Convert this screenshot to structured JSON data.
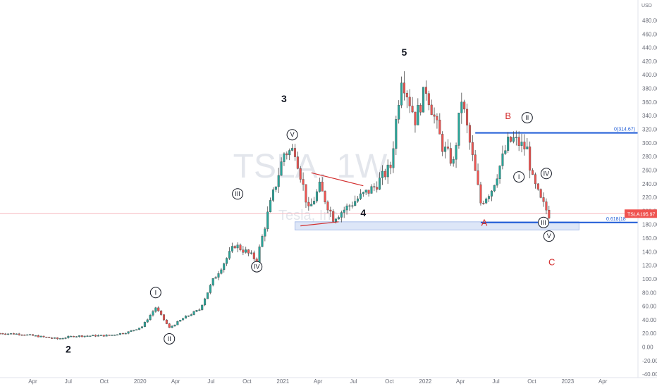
{
  "chart_data": {
    "type": "candlestick",
    "timeframe": "1W",
    "watermark": "TSLA, 1W",
    "watermark_sub": "Tesla, Inc.",
    "ticker": "TSLA",
    "last_price": "195.97",
    "currency": "USD",
    "ylim": [
      -45,
      510
    ],
    "y_ticks": [
      "480.00",
      "460.00",
      "440.00",
      "420.00",
      "400.00",
      "380.00",
      "360.00",
      "340.00",
      "320.00",
      "300.00",
      "280.00",
      "260.00",
      "240.00",
      "220.00",
      "200.00",
      "180.00",
      "160.00",
      "140.00",
      "120.00",
      "100.00",
      "80.00",
      "60.00",
      "40.00",
      "20.00",
      "0.00",
      "-20.00",
      "-40.00"
    ],
    "x_labels": [
      "Apr",
      "Jul",
      "Oct",
      "2020",
      "Apr",
      "Jul",
      "Oct",
      "2021",
      "Apr",
      "Jul",
      "Oct",
      "2022",
      "Apr",
      "Jul",
      "Oct",
      "2023",
      "Apr"
    ],
    "x_range": [
      "2019-01-07",
      "2023-06-30"
    ],
    "x_label_dates": [
      "2019-04-01",
      "2019-07-01",
      "2019-10-01",
      "2020-01-01",
      "2020-04-01",
      "2020-07-01",
      "2020-10-01",
      "2021-01-01",
      "2021-04-01",
      "2021-07-01",
      "2021-10-01",
      "2022-01-01",
      "2022-04-01",
      "2022-07-01",
      "2022-10-01",
      "2023-01-01",
      "2023-04-01"
    ],
    "price_anchors": [
      [
        "2019-01-07",
        20
      ],
      [
        "2019-03-01",
        19
      ],
      [
        "2019-06-03",
        12
      ],
      [
        "2019-07-15",
        16
      ],
      [
        "2019-10-14",
        17
      ],
      [
        "2019-12-02",
        22
      ],
      [
        "2020-01-06",
        30
      ],
      [
        "2020-02-10",
        58
      ],
      [
        "2020-03-16",
        28
      ],
      [
        "2020-04-20",
        42
      ],
      [
        "2020-06-01",
        55
      ],
      [
        "2020-07-06",
        98
      ],
      [
        "2020-08-31",
        150
      ],
      [
        "2020-09-28",
        140
      ],
      [
        "2020-10-26",
        128
      ],
      [
        "2020-11-23",
        195
      ],
      [
        "2021-01-04",
        285
      ],
      [
        "2021-02-01",
        290
      ],
      [
        "2021-03-08",
        200
      ],
      [
        "2021-04-05",
        235
      ],
      [
        "2021-05-10",
        190
      ],
      [
        "2021-06-14",
        205
      ],
      [
        "2021-07-12",
        218
      ],
      [
        "2021-08-23",
        235
      ],
      [
        "2021-10-04",
        265
      ],
      [
        "2021-11-01",
        400
      ],
      [
        "2021-12-06",
        335
      ],
      [
        "2022-01-03",
        380
      ],
      [
        "2022-02-14",
        295
      ],
      [
        "2022-03-14",
        270
      ],
      [
        "2022-04-04",
        365
      ],
      [
        "2022-05-23",
        212
      ],
      [
        "2022-06-20",
        232
      ],
      [
        "2022-08-01",
        300
      ],
      [
        "2022-08-15",
        305
      ],
      [
        "2022-09-19",
        290
      ],
      [
        "2022-10-03",
        245
      ],
      [
        "2022-10-24",
        215
      ],
      [
        "2022-11-14",
        195
      ]
    ],
    "horizontal_lines": [
      {
        "label": "0(314.67)",
        "y": 314.67
      },
      {
        "label": "0.618(18",
        "y": 183
      }
    ],
    "zone": {
      "from": 172,
      "to": 184
    },
    "wave_labels_major": [
      {
        "text": "2",
        "date": "2019-07-01",
        "y": -8
      },
      {
        "text": "3",
        "date": "2021-01-04",
        "y": 360
      },
      {
        "text": "4",
        "date": "2021-07-26",
        "y": 192
      },
      {
        "text": "5",
        "date": "2021-11-08",
        "y": 428
      }
    ],
    "wave_labels_abc": [
      {
        "text": "A",
        "date": "2022-06-01",
        "y": 178
      },
      {
        "text": "B",
        "date": "2022-08-01",
        "y": 335
      },
      {
        "text": "C",
        "date": "2022-11-21",
        "y": 120
      }
    ],
    "wave_labels_circled": [
      {
        "text": "I",
        "date": "2020-02-10",
        "y": 80
      },
      {
        "text": "II",
        "date": "2020-03-16",
        "y": 12
      },
      {
        "text": "III",
        "date": "2020-09-07",
        "y": 225
      },
      {
        "text": "IV",
        "date": "2020-10-26",
        "y": 118
      },
      {
        "text": "V",
        "date": "2021-01-25",
        "y": 312
      },
      {
        "text": "I",
        "date": "2022-08-29",
        "y": 250
      },
      {
        "text": "II",
        "date": "2022-09-19",
        "y": 337
      },
      {
        "text": "III",
        "date": "2022-10-31",
        "y": 183
      },
      {
        "text": "IV",
        "date": "2022-11-07",
        "y": 255
      },
      {
        "text": "V",
        "date": "2022-11-14",
        "y": 163
      }
    ],
    "triangle_lines": [
      {
        "points": [
          [
            "2021-03-15",
            256
          ],
          [
            "2021-07-26",
            237
          ]
        ]
      },
      {
        "points": [
          [
            "2021-02-15",
            178
          ],
          [
            "2021-05-24",
            184
          ]
        ]
      }
    ],
    "colors": {
      "up": "#26a69a",
      "down": "#ef5350",
      "wick": "#4a4a4a",
      "blue_line": "#1e5bd6",
      "zone_fill": "#dde6f7",
      "zone_stroke": "#a9bde8",
      "red": "#d32f2f",
      "pink_line": "#f7b8c0",
      "last_price_bg": "#ef5350",
      "watermark": "#e3e6ec",
      "axis_text": "#6a6d78"
    }
  }
}
